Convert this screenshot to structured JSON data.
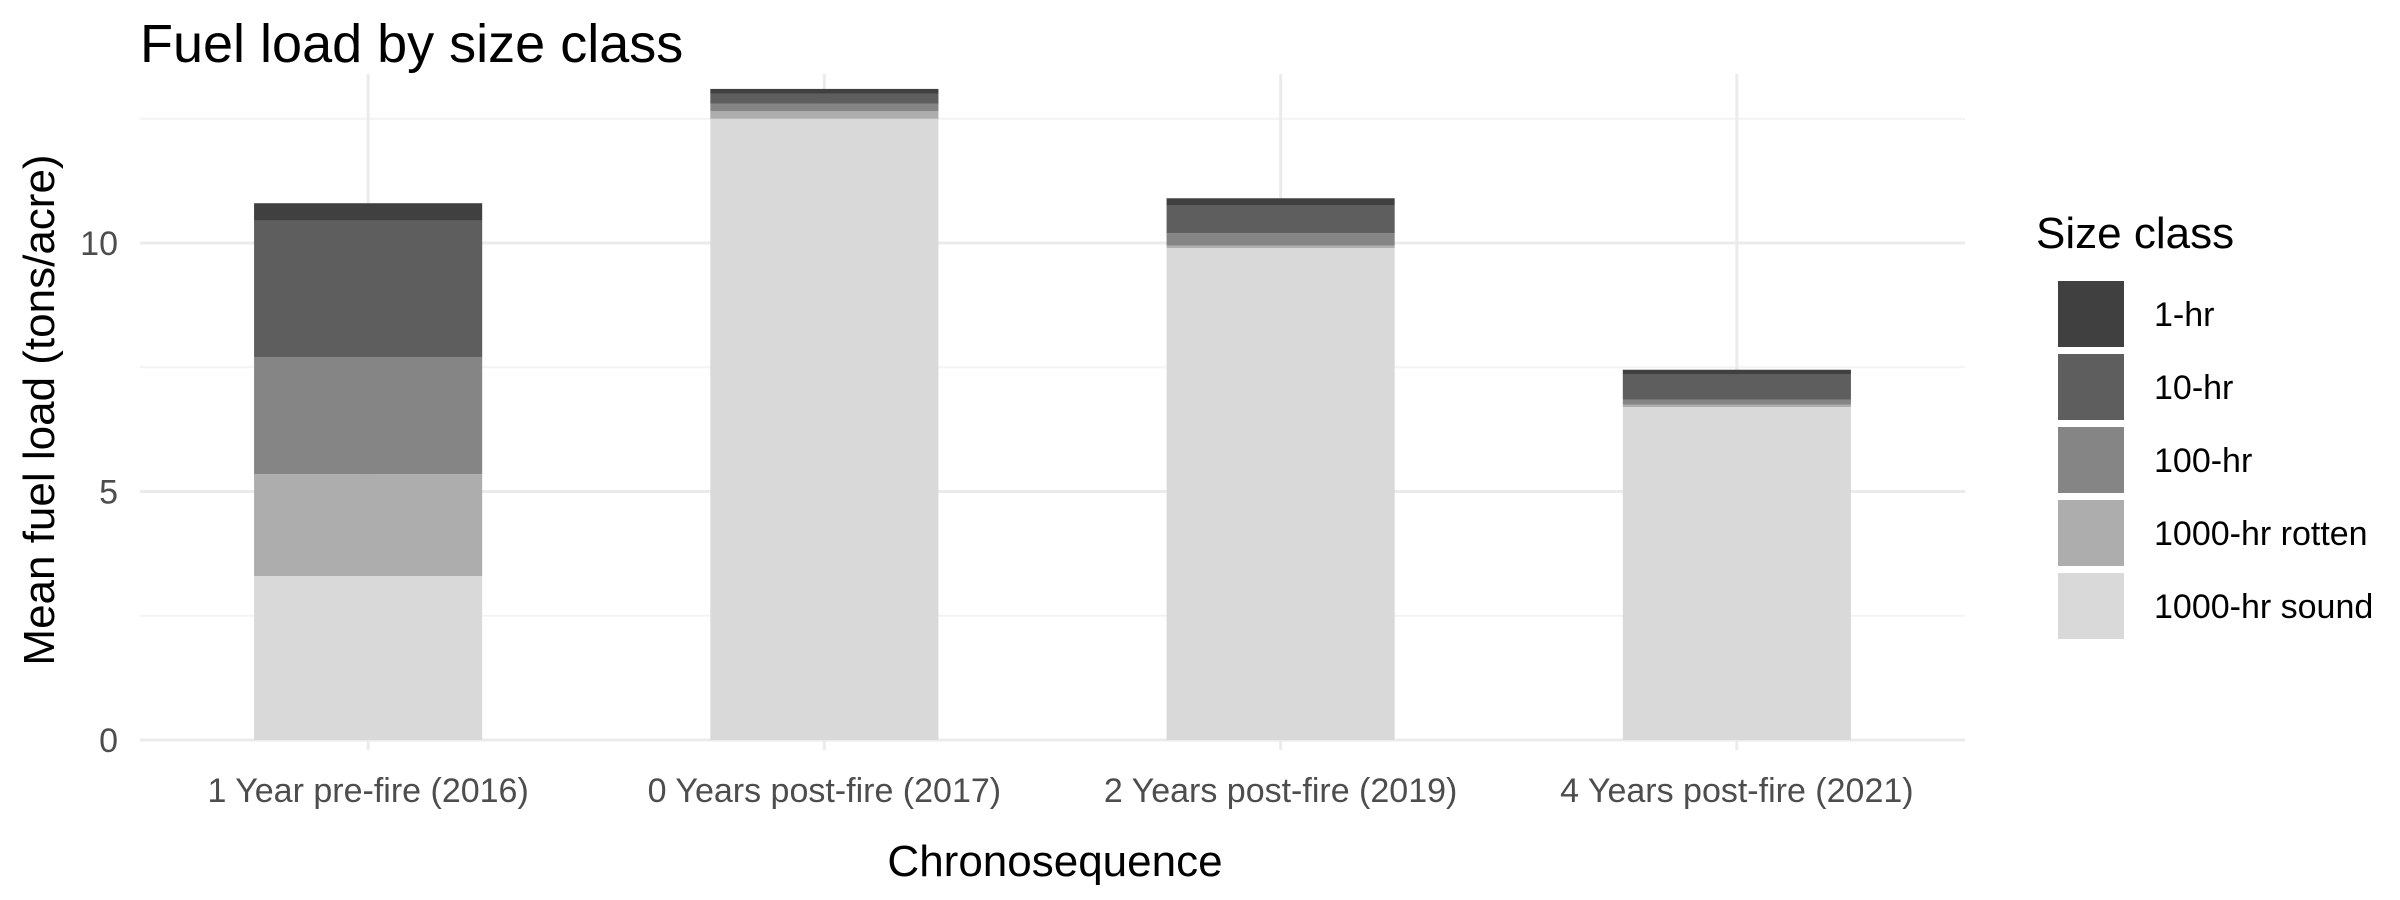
{
  "chart_data": {
    "type": "bar",
    "stacked": true,
    "title": "Fuel load by size class",
    "xlabel": "Chronosequence",
    "ylabel": "Mean fuel load (tons/acre)",
    "ylim": [
      0,
      13.4
    ],
    "yticks": [
      0,
      5,
      10
    ],
    "grid": true,
    "legend_position": "right",
    "legend_title": "Size class",
    "categories": [
      "1 Year pre-fire (2016)",
      "0 Years post-fire (2017)",
      "2 Years post-fire (2019)",
      "4 Years post-fire (2021)"
    ],
    "series": [
      {
        "name": "1000-hr sound",
        "color": "#d9d9d9",
        "values": [
          3.3,
          12.5,
          9.9,
          6.7
        ]
      },
      {
        "name": "1000-hr rotten",
        "color": "#adadad",
        "values": [
          2.05,
          0.15,
          0.05,
          0.05
        ]
      },
      {
        "name": "100-hr",
        "color": "#858585",
        "values": [
          2.35,
          0.15,
          0.25,
          0.1
        ]
      },
      {
        "name": "10-hr",
        "color": "#5e5e5e",
        "values": [
          2.75,
          0.2,
          0.55,
          0.5
        ]
      },
      {
        "name": "1-hr",
        "color": "#404040",
        "values": [
          0.35,
          0.1,
          0.15,
          0.1
        ]
      }
    ]
  }
}
